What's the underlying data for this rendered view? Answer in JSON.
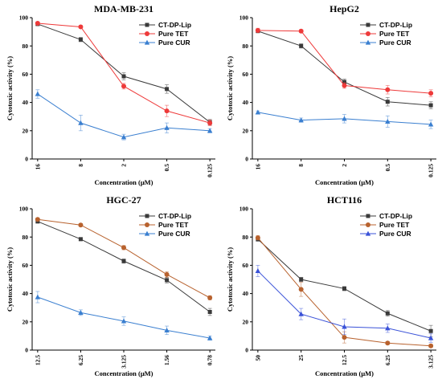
{
  "chart_data": [
    {
      "type": "line",
      "title": "MDA-MB-231",
      "xlabel": "Concentration (μM)",
      "ylabel": "Cytotoxic activity (%)",
      "categories": [
        "16",
        "8",
        "2",
        "0.5",
        "0.125"
      ],
      "ylim": [
        0,
        100
      ],
      "yticks": [
        0,
        20,
        40,
        60,
        80,
        100
      ],
      "legend_position": "top-right",
      "grid": false,
      "series": [
        {
          "name": "CT-DP-Lip",
          "color": "#3a3a3a",
          "marker": "square",
          "values": [
            95.5,
            84.5,
            58.5,
            49.5,
            26.0
          ],
          "errors": [
            1.0,
            1.5,
            2.5,
            3.0,
            2.0
          ]
        },
        {
          "name": "Pure TET",
          "color": "#ee3a3a",
          "marker": "circle",
          "values": [
            96.0,
            93.5,
            51.5,
            34.0,
            25.5
          ],
          "errors": [
            1.0,
            1.0,
            2.0,
            4.0,
            2.0
          ]
        },
        {
          "name": "Pure CUR",
          "color": "#3a7fd0",
          "marker": "triangle",
          "values": [
            46.0,
            25.5,
            15.5,
            22.0,
            20.0
          ],
          "errors": [
            3.0,
            5.5,
            2.0,
            3.5,
            1.5
          ]
        }
      ]
    },
    {
      "type": "line",
      "title": "HepG2",
      "xlabel": "Concentration (μM)",
      "ylabel": "Cytotoxic activity (%)",
      "categories": [
        "16",
        "8",
        "2",
        "0.5",
        "0.125"
      ],
      "ylim": [
        0,
        100
      ],
      "yticks": [
        0,
        20,
        40,
        60,
        80,
        100
      ],
      "legend_position": "top-right",
      "grid": false,
      "series": [
        {
          "name": "CT-DP-Lip",
          "color": "#3a3a3a",
          "marker": "square",
          "values": [
            90.5,
            80.0,
            54.5,
            40.5,
            38.0
          ],
          "errors": [
            1.0,
            1.5,
            2.0,
            3.0,
            2.5
          ]
        },
        {
          "name": "Pure TET",
          "color": "#ee3a3a",
          "marker": "circle",
          "values": [
            91.0,
            90.5,
            52.0,
            49.0,
            46.5
          ],
          "errors": [
            1.5,
            1.0,
            2.0,
            3.0,
            2.5
          ]
        },
        {
          "name": "Pure CUR",
          "color": "#3a7fd0",
          "marker": "triangle",
          "values": [
            33.0,
            27.5,
            28.5,
            26.5,
            24.5
          ],
          "errors": [
            1.0,
            1.5,
            3.0,
            4.0,
            3.0
          ]
        }
      ]
    },
    {
      "type": "line",
      "title": "HGC-27",
      "xlabel": "Concentration (μM)",
      "ylabel": "Cytotoxic activity (%)",
      "categories": [
        "12.5",
        "6.25",
        "3.125",
        "1.56",
        "0.78"
      ],
      "ylim": [
        0,
        100
      ],
      "yticks": [
        0,
        20,
        40,
        60,
        80,
        100
      ],
      "legend_position": "top-right",
      "grid": false,
      "series": [
        {
          "name": "CT-DP-Lip",
          "color": "#3a3a3a",
          "marker": "square",
          "values": [
            91.0,
            78.5,
            63.0,
            49.5,
            27.0
          ],
          "errors": [
            1.0,
            1.0,
            1.5,
            2.0,
            2.5
          ]
        },
        {
          "name": "Pure TET",
          "color": "#b8622e",
          "marker": "circle",
          "values": [
            92.5,
            88.5,
            72.5,
            53.5,
            37.0
          ],
          "errors": [
            1.0,
            1.0,
            1.5,
            2.0,
            1.5
          ]
        },
        {
          "name": "Pure CUR",
          "color": "#3a7fd0",
          "marker": "triangle",
          "values": [
            37.5,
            26.5,
            20.5,
            14.0,
            8.5
          ],
          "errors": [
            4.0,
            2.0,
            3.0,
            3.0,
            1.5
          ]
        }
      ]
    },
    {
      "type": "line",
      "title": "HCT116",
      "xlabel": "Concentration (μM)",
      "ylabel": "Cytotoxic activity (%)",
      "categories": [
        "50",
        "25",
        "12.5",
        "6.25",
        "3.125"
      ],
      "ylim": [
        0,
        100
      ],
      "yticks": [
        0,
        20,
        40,
        60,
        80,
        100
      ],
      "legend_position": "top-right",
      "grid": false,
      "series": [
        {
          "name": "CT-DP-Lip",
          "color": "#3a3a3a",
          "marker": "square",
          "values": [
            78.5,
            50.0,
            43.5,
            26.0,
            13.5
          ],
          "errors": [
            1.5,
            1.5,
            1.5,
            2.0,
            4.0
          ]
        },
        {
          "name": "Pure TET",
          "color": "#b8622e",
          "marker": "circle",
          "values": [
            79.5,
            43.0,
            9.0,
            5.0,
            3.0
          ],
          "errors": [
            1.5,
            5.0,
            4.0,
            1.0,
            1.0
          ]
        },
        {
          "name": "Pure CUR",
          "color": "#3a52d8",
          "marker": "triangle",
          "values": [
            56.0,
            25.5,
            16.5,
            15.5,
            8.5
          ],
          "errors": [
            4.0,
            4.0,
            5.5,
            3.0,
            3.0
          ]
        }
      ]
    }
  ]
}
